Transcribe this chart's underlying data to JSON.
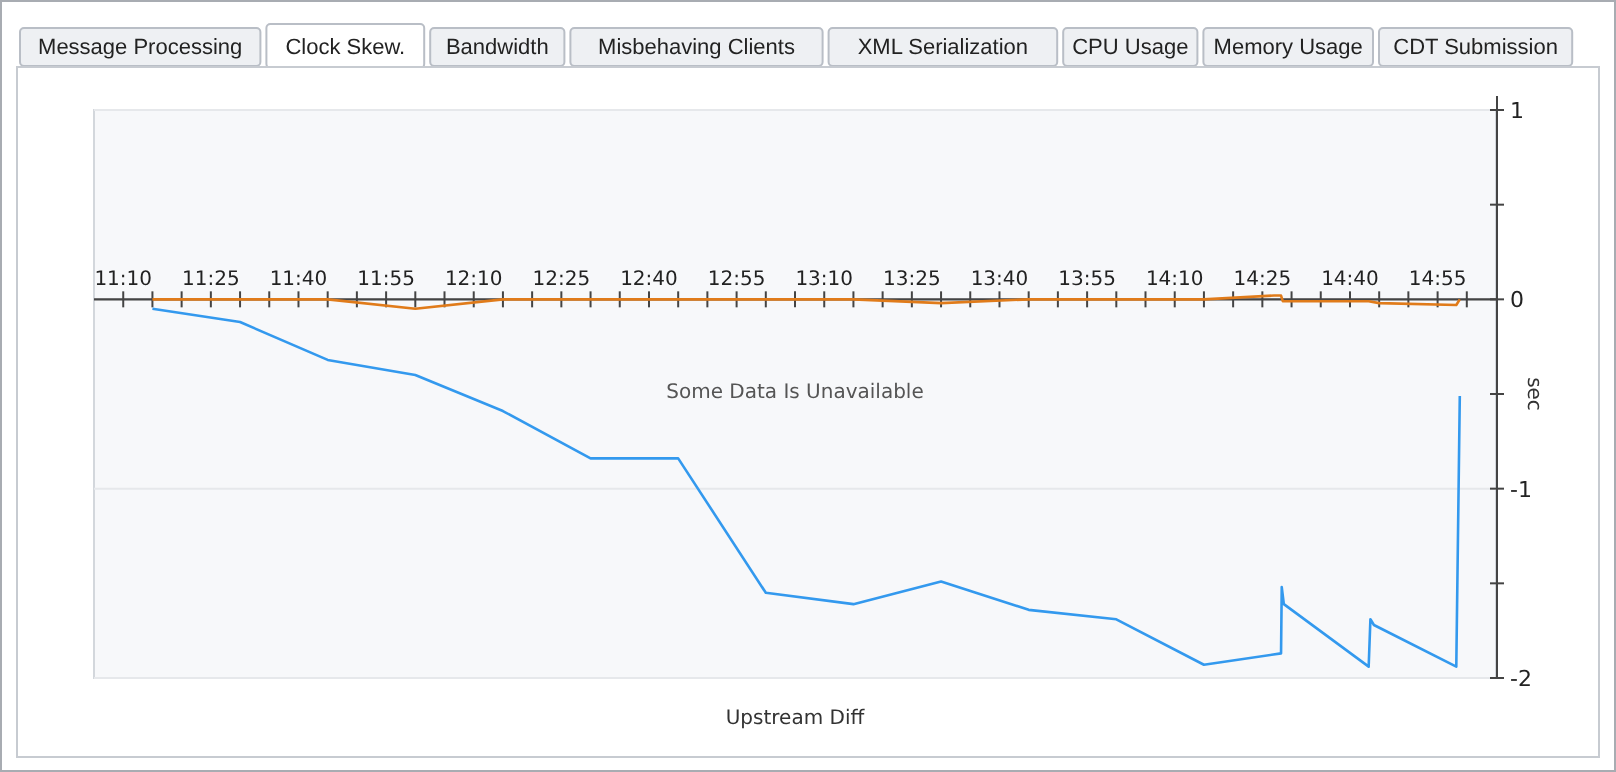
{
  "chart_data": {
    "type": "line",
    "title": "Clock Skew.",
    "annotations": [
      "Some Data Is Unavailable",
      "Message Processing",
      "Bandwidth",
      "Misbehaving Clients",
      "XML Serialization",
      "CPU Usage",
      "Memory Usage",
      "CDT Submission"
    ],
    "xlabel": "Upstream Diff",
    "ylabel": "sec",
    "xlim": [
      11.0833,
      15.0833
    ],
    "ylim": [
      -2,
      1
    ],
    "yticks": [
      1,
      {
        "value": 0.5,
        "label": null
      },
      0,
      {
        "value": -0.5,
        "label": null
      },
      -1,
      {
        "value": -1.5,
        "label": null
      },
      -2
    ],
    "xticks": [
      {
        "value": 11.1667,
        "label": "11:10"
      },
      {
        "value": 11.25,
        "label": null
      },
      {
        "value": 11.3333,
        "label": null
      },
      {
        "value": 11.4167,
        "label": "11:25"
      },
      {
        "value": 11.5,
        "label": null
      },
      {
        "value": 11.5833,
        "label": null
      },
      {
        "value": 11.6667,
        "label": "11:40"
      },
      {
        "value": 11.75,
        "label": null
      },
      {
        "value": 11.8333,
        "label": null
      },
      {
        "value": 11.9167,
        "label": "11:55"
      },
      {
        "value": 12,
        "label": null
      },
      {
        "value": 12.0833,
        "label": null
      },
      {
        "value": 12.1667,
        "label": "12:10"
      },
      {
        "value": 12.25,
        "label": null
      },
      {
        "value": 12.3333,
        "label": null
      },
      {
        "value": 12.4167,
        "label": "12:25"
      },
      {
        "value": 12.5,
        "label": null
      },
      {
        "value": 12.5833,
        "label": null
      },
      {
        "value": 12.6667,
        "label": "12:40"
      },
      {
        "value": 12.75,
        "label": null
      },
      {
        "value": 12.8333,
        "label": null
      },
      {
        "value": 12.9167,
        "label": "12:55"
      },
      {
        "value": 13,
        "label": null
      },
      {
        "value": 13.0833,
        "label": null
      },
      {
        "value": 13.1667,
        "label": "13:10"
      },
      {
        "value": 13.25,
        "label": null
      },
      {
        "value": 13.3333,
        "label": null
      },
      {
        "value": 13.4167,
        "label": "13:25"
      },
      {
        "value": 13.5,
        "label": null
      },
      {
        "value": 13.5833,
        "label": null
      },
      {
        "value": 13.6667,
        "label": "13:40"
      },
      {
        "value": 13.75,
        "label": null
      },
      {
        "value": 13.8333,
        "label": null
      },
      {
        "value": 13.9167,
        "label": "13:55"
      },
      {
        "value": 14,
        "label": null
      },
      {
        "value": 14.0833,
        "label": null
      },
      {
        "value": 14.1667,
        "label": "14:10"
      },
      {
        "value": 14.25,
        "label": null
      },
      {
        "value": 14.3333,
        "label": null
      },
      {
        "value": 14.4167,
        "label": "14:25"
      },
      {
        "value": 14.5,
        "label": null
      },
      {
        "value": 14.5833,
        "label": null
      },
      {
        "value": 14.6667,
        "label": "14:40"
      },
      {
        "value": 14.75,
        "label": null
      },
      {
        "value": 14.8333,
        "label": null
      },
      {
        "value": 14.9167,
        "label": "14:55"
      },
      {
        "value": 15,
        "label": null
      }
    ],
    "grid": "y",
    "marker": "none",
    "line_style": "solid",
    "series": [
      {
        "color": "#3399ee",
        "x": [
          11.25,
          11.5,
          11.75,
          12,
          12.25,
          12.5,
          12.75,
          13,
          13.25,
          13.5,
          13.75,
          14,
          14.25,
          14.47,
          14.472,
          14.478,
          14.72,
          14.725,
          14.735,
          14.97,
          14.98
        ],
        "values": [
          -0.05,
          -0.12,
          -0.32,
          -0.4,
          -0.59,
          -0.84,
          -0.84,
          -1.55,
          -1.61,
          -1.49,
          -1.64,
          -1.69,
          -1.93,
          -1.87,
          -1.52,
          -1.61,
          -1.94,
          -1.69,
          -1.72,
          -1.94,
          -0.51
        ]
      },
      {
        "color": "#e07b1a",
        "x": [
          11.25,
          11.75,
          12,
          12.25,
          13.25,
          13.5,
          13.75,
          14.25,
          14.45,
          14.47,
          14.475,
          14.72,
          14.75,
          14.97,
          14.98
        ],
        "values": [
          0,
          0,
          -0.05,
          0,
          0,
          -0.02,
          0,
          0,
          0.02,
          0.02,
          -0.01,
          -0.01,
          -0.02,
          -0.03,
          0
        ]
      }
    ]
  }
}
